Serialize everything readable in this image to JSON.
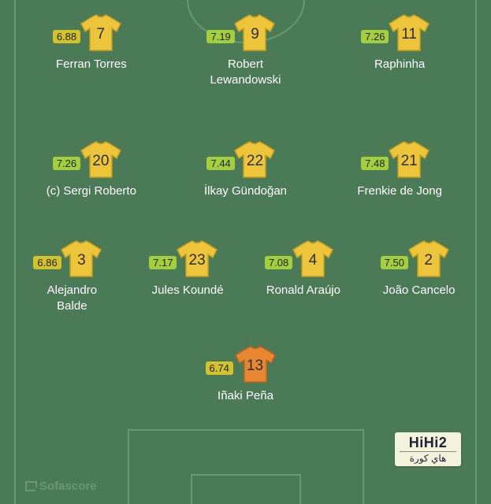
{
  "colors": {
    "pitch_bg": "#4a7a56",
    "pitch_line": "#6a9776",
    "jersey_outfield_fill": "#edc53a",
    "jersey_outfield_stroke": "#c79f1f",
    "jersey_gk_fill": "#e88731",
    "jersey_gk_stroke": "#c2651f",
    "jersey_number_color": "#2c2c2c",
    "player_name_color": "#ffffff",
    "rating_text_color": "#222222",
    "watermark_color": "#6a9776",
    "logo_bg": "#f3f3dd",
    "logo_text": "#222233"
  },
  "rating_tiers": {
    "mid": "#d3c22a",
    "good": "#a4cf3c"
  },
  "watermark": "Sofascore",
  "logo": {
    "top": "HiHi2",
    "bottom": "هاي كورة"
  },
  "formation": {
    "forwards": [
      {
        "name": "Ferran Torres",
        "number": "7",
        "rating": "6.88",
        "rating_color": "#d3c22a",
        "jersey": "outfield"
      },
      {
        "name": "Robert Lewandowski",
        "number": "9",
        "rating": "7.19",
        "rating_color": "#a4cf3c",
        "jersey": "outfield"
      },
      {
        "name": "Raphinha",
        "number": "11",
        "rating": "7.26",
        "rating_color": "#a4cf3c",
        "jersey": "outfield"
      }
    ],
    "midfielders": [
      {
        "name": "(c) Sergi Roberto",
        "number": "20",
        "rating": "7.26",
        "rating_color": "#a4cf3c",
        "jersey": "outfield"
      },
      {
        "name": "İlkay Gündoğan",
        "number": "22",
        "rating": "7.44",
        "rating_color": "#a4cf3c",
        "jersey": "outfield"
      },
      {
        "name": "Frenkie de Jong",
        "number": "21",
        "rating": "7.48",
        "rating_color": "#a4cf3c",
        "jersey": "outfield"
      }
    ],
    "defenders": [
      {
        "name": "Alejandro Balde",
        "number": "3",
        "rating": "6.86",
        "rating_color": "#d3c22a",
        "jersey": "outfield"
      },
      {
        "name": "Jules Koundé",
        "number": "23",
        "rating": "7.17",
        "rating_color": "#a4cf3c",
        "jersey": "outfield"
      },
      {
        "name": "Ronald Araújo",
        "number": "4",
        "rating": "7.08",
        "rating_color": "#a4cf3c",
        "jersey": "outfield"
      },
      {
        "name": "João Cancelo",
        "number": "2",
        "rating": "7.50",
        "rating_color": "#a4cf3c",
        "jersey": "outfield"
      }
    ],
    "goalkeeper": {
      "name": "Iñaki Peña",
      "number": "13",
      "rating": "6.74",
      "rating_color": "#d3c22a",
      "jersey": "gk"
    }
  }
}
